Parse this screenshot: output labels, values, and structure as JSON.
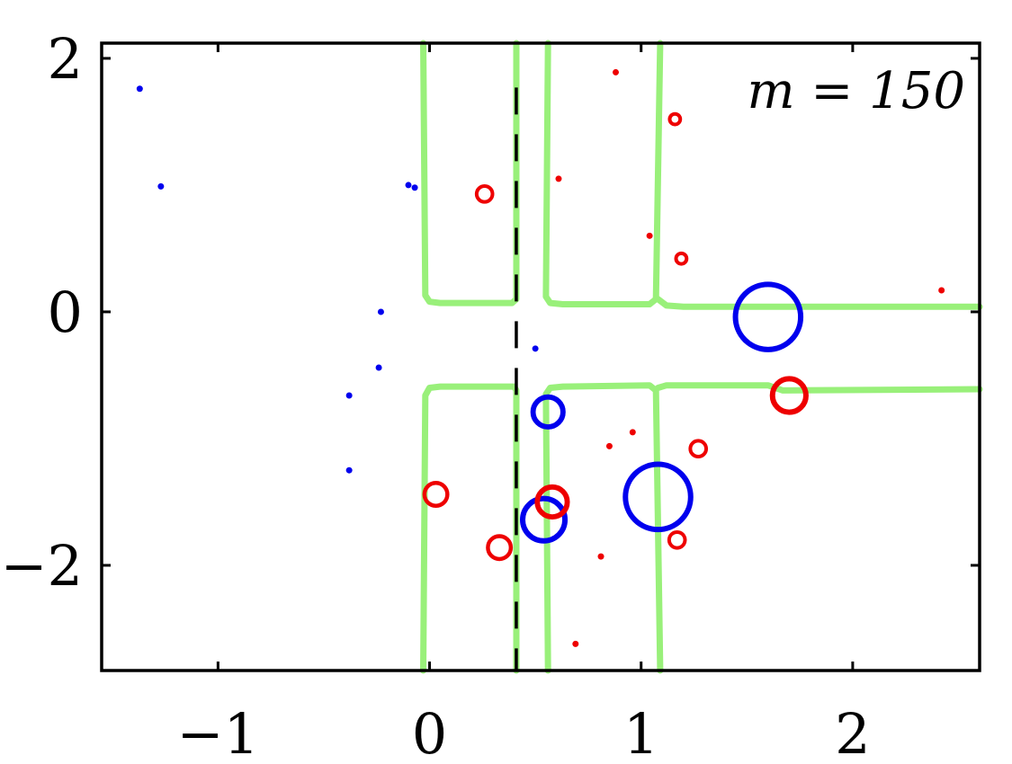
{
  "chart_data": {
    "type": "scatter",
    "title": "",
    "xlabel": "",
    "ylabel": "",
    "xlim": [
      -1.55,
      2.6
    ],
    "ylim": [
      -2.83,
      2.12
    ],
    "x_ticks": [
      -1,
      0,
      1,
      2
    ],
    "x_tick_labels": [
      "−1",
      "0",
      "1",
      "2"
    ],
    "y_ticks": [
      -2,
      0,
      2
    ],
    "y_tick_labels": [
      "−2",
      "0",
      "2"
    ],
    "grid": false,
    "annotation": "m = 150",
    "colors": {
      "negative": "#0000ee",
      "positive": "#ee0000",
      "boundary": "#99f07a",
      "threshold": "#000000"
    },
    "series": [
      {
        "class": "blue",
        "points": [
          {
            "x": -1.37,
            "y": 1.76,
            "r": 0.8
          },
          {
            "x": -1.27,
            "y": 0.99,
            "r": 0.8
          },
          {
            "x": -0.1,
            "y": 1.0,
            "r": 0.8
          },
          {
            "x": -0.07,
            "y": 0.98,
            "r": 0.8
          },
          {
            "x": -0.23,
            "y": 0.0,
            "r": 0.6
          },
          {
            "x": -0.24,
            "y": -0.44,
            "r": 0.6
          },
          {
            "x": -0.38,
            "y": -0.66,
            "r": 0.6
          },
          {
            "x": -0.38,
            "y": -1.25,
            "r": 0.6
          },
          {
            "x": 0.5,
            "y": -0.29,
            "r": 0.6
          },
          {
            "x": 0.56,
            "y": -0.79,
            "r": 3.4
          },
          {
            "x": 0.54,
            "y": -1.64,
            "r": 4.8
          },
          {
            "x": 1.08,
            "y": -1.46,
            "r": 7.4
          },
          {
            "x": 1.6,
            "y": -0.04,
            "r": 7.4
          }
        ]
      },
      {
        "class": "red",
        "points": [
          {
            "x": 0.88,
            "y": 1.89,
            "r": 0.8
          },
          {
            "x": 1.16,
            "y": 1.52,
            "r": 1.2
          },
          {
            "x": 0.26,
            "y": 0.93,
            "r": 1.8
          },
          {
            "x": 0.61,
            "y": 1.05,
            "r": 0.8
          },
          {
            "x": 1.04,
            "y": 0.6,
            "r": 0.8
          },
          {
            "x": 1.19,
            "y": 0.42,
            "r": 1.2
          },
          {
            "x": 2.42,
            "y": 0.17,
            "r": 0.8
          },
          {
            "x": 1.7,
            "y": -0.66,
            "r": 3.8
          },
          {
            "x": 0.96,
            "y": -0.95,
            "r": 0.8
          },
          {
            "x": 0.85,
            "y": -1.06,
            "r": 0.8
          },
          {
            "x": 1.27,
            "y": -1.08,
            "r": 1.8
          },
          {
            "x": 0.03,
            "y": -1.44,
            "r": 2.6
          },
          {
            "x": 0.58,
            "y": -1.5,
            "r": 3.4
          },
          {
            "x": 0.33,
            "y": -1.86,
            "r": 2.6
          },
          {
            "x": 0.81,
            "y": -1.93,
            "r": 0.8
          },
          {
            "x": 1.17,
            "y": -1.8,
            "r": 1.8
          },
          {
            "x": 0.69,
            "y": -2.62,
            "r": 0.8
          }
        ]
      }
    ],
    "threshold_line": {
      "x": 0.41,
      "style": "dashed",
      "y_range": [
        -2.83,
        1.77
      ]
    },
    "decision_boundary": [
      [
        [
          -0.03,
          2.12
        ],
        [
          -0.02,
          0.13
        ],
        [
          0.0,
          0.08
        ],
        [
          0.05,
          0.07
        ],
        [
          0.39,
          0.07
        ],
        [
          0.41,
          0.1
        ],
        [
          0.41,
          2.12
        ]
      ],
      [
        [
          0.56,
          2.12
        ],
        [
          0.55,
          0.12
        ],
        [
          0.57,
          0.07
        ],
        [
          0.63,
          0.06
        ],
        [
          1.04,
          0.06
        ],
        [
          1.07,
          0.1
        ],
        [
          1.09,
          2.12
        ]
      ],
      [
        [
          1.08,
          0.1
        ],
        [
          1.12,
          0.05
        ],
        [
          1.2,
          0.04
        ],
        [
          2.6,
          0.04
        ]
      ],
      [
        [
          -0.03,
          -2.83
        ],
        [
          -0.02,
          -0.66
        ],
        [
          0.0,
          -0.6
        ],
        [
          0.05,
          -0.59
        ],
        [
          0.4,
          -0.59
        ],
        [
          0.41,
          -0.62
        ],
        [
          0.41,
          -2.83
        ]
      ],
      [
        [
          0.56,
          -2.83
        ],
        [
          0.55,
          -0.65
        ],
        [
          0.57,
          -0.6
        ],
        [
          0.63,
          -0.59
        ],
        [
          1.04,
          -0.58
        ],
        [
          1.07,
          -0.62
        ],
        [
          1.09,
          -2.83
        ]
      ],
      [
        [
          1.08,
          -0.6
        ],
        [
          1.12,
          -0.58
        ],
        [
          1.6,
          -0.58
        ],
        [
          1.67,
          -0.62
        ],
        [
          2.6,
          -0.61
        ]
      ]
    ]
  }
}
